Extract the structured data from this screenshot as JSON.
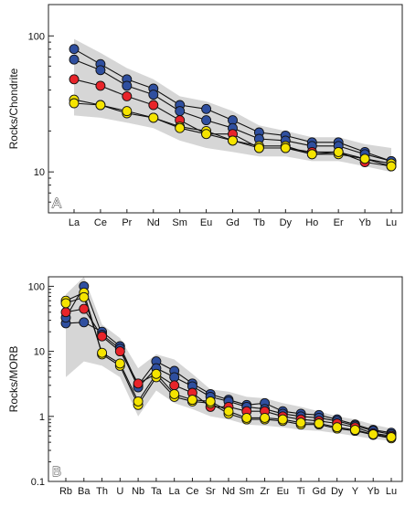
{
  "colors": {
    "envelope": "#d6d6d6",
    "frame": "#222222",
    "line": "#111111",
    "blue": "#2f4f9f",
    "red": "#e8242a",
    "yellow": "#f5e400"
  },
  "chart_data": [
    {
      "type": "line",
      "panel": "A",
      "ylabel": "Rocks/Chondrite",
      "yscale": "log",
      "ylim": [
        5,
        170
      ],
      "yticks": [
        10,
        100
      ],
      "categories": [
        "La",
        "Ce",
        "Pr",
        "Nd",
        "Sm",
        "Eu",
        "Gd",
        "Tb",
        "Dy",
        "Ho",
        "Er",
        "Yb",
        "Lu"
      ],
      "envelope": {
        "upper": [
          95,
          75,
          58,
          48,
          36,
          33,
          28,
          22,
          20,
          18,
          18,
          16,
          15
        ],
        "lower": [
          26,
          25,
          23,
          21,
          17,
          15,
          14,
          13,
          13,
          12,
          12,
          11,
          10
        ]
      },
      "series": [
        {
          "color": "blue",
          "values": [
            80,
            62,
            48,
            41,
            31,
            29,
            24,
            19.5,
            18.5,
            16.5,
            16.5,
            14,
            12
          ]
        },
        {
          "color": "blue",
          "values": [
            67,
            56,
            43,
            37,
            28,
            24,
            21,
            17.5,
            17,
            15.5,
            15.5,
            13.5,
            12
          ]
        },
        {
          "color": "red",
          "values": [
            48,
            43,
            36,
            31,
            24,
            19,
            19,
            15,
            15,
            14,
            14,
            11.8,
            11
          ]
        },
        {
          "color": "yellow",
          "values": [
            34,
            31,
            27,
            25,
            21.5,
            20,
            17,
            15.5,
            15.5,
            13.5,
            13.5,
            12.5,
            11.5
          ]
        },
        {
          "color": "yellow",
          "values": [
            32,
            31,
            28,
            25,
            21,
            19,
            17,
            15,
            15,
            13.5,
            14,
            12.5,
            11
          ]
        }
      ]
    },
    {
      "type": "line",
      "panel": "B",
      "ylabel": "Rocks/MORB",
      "yscale": "log",
      "ylim": [
        0.1,
        140
      ],
      "yticks": [
        0.1,
        1,
        10,
        100
      ],
      "categories": [
        "Rb",
        "Ba",
        "Th",
        "U",
        "Nb",
        "Ta",
        "La",
        "Ce",
        "Sr",
        "Nd",
        "Sm",
        "Zr",
        "Eu",
        "Ti",
        "Gd",
        "Dy",
        "Y",
        "Yb",
        "Lu"
      ],
      "envelope": {
        "upper": [
          75,
          140,
          26,
          16,
          5.5,
          9,
          7.5,
          4.5,
          2.6,
          2.4,
          2.0,
          1.9,
          1.6,
          1.4,
          1.2,
          1.0,
          0.9,
          0.75,
          0.65
        ],
        "lower": [
          4,
          7,
          6,
          4,
          1.0,
          2.5,
          1.6,
          1.3,
          1.0,
          0.9,
          0.75,
          0.72,
          0.68,
          0.62,
          0.6,
          0.55,
          0.5,
          0.45,
          0.42
        ]
      },
      "series": [
        {
          "color": "blue",
          "values": [
            27,
            28,
            20,
            12,
            3.0,
            7,
            5,
            3.2,
            2.2,
            1.8,
            1.5,
            1.6,
            1.2,
            1.1,
            1.05,
            0.9,
            0.75,
            0.62,
            0.56
          ]
        },
        {
          "color": "blue",
          "values": [
            33,
            100,
            18,
            11,
            2.8,
            5.5,
            4.0,
            2.9,
            2.0,
            1.7,
            1.4,
            1.3,
            1.1,
            1.0,
            0.95,
            0.85,
            0.72,
            0.6,
            0.53
          ]
        },
        {
          "color": "red",
          "values": [
            40,
            45,
            17,
            10,
            3.2,
            4.5,
            3.0,
            2.3,
            1.4,
            1.4,
            1.2,
            1.2,
            1.0,
            0.9,
            0.85,
            0.78,
            0.68,
            0.55,
            0.5
          ]
        },
        {
          "color": "yellow",
          "values": [
            60,
            80,
            9,
            6,
            1.5,
            4.0,
            2.0,
            1.7,
            1.6,
            1.1,
            0.9,
            0.9,
            0.85,
            0.75,
            0.75,
            0.65,
            0.6,
            0.52,
            0.46
          ]
        },
        {
          "color": "yellow",
          "values": [
            55,
            68,
            9.5,
            6.5,
            1.7,
            4.5,
            2.2,
            1.8,
            1.7,
            1.2,
            0.95,
            0.95,
            0.9,
            0.8,
            0.78,
            0.68,
            0.62,
            0.53,
            0.48
          ]
        }
      ]
    }
  ]
}
